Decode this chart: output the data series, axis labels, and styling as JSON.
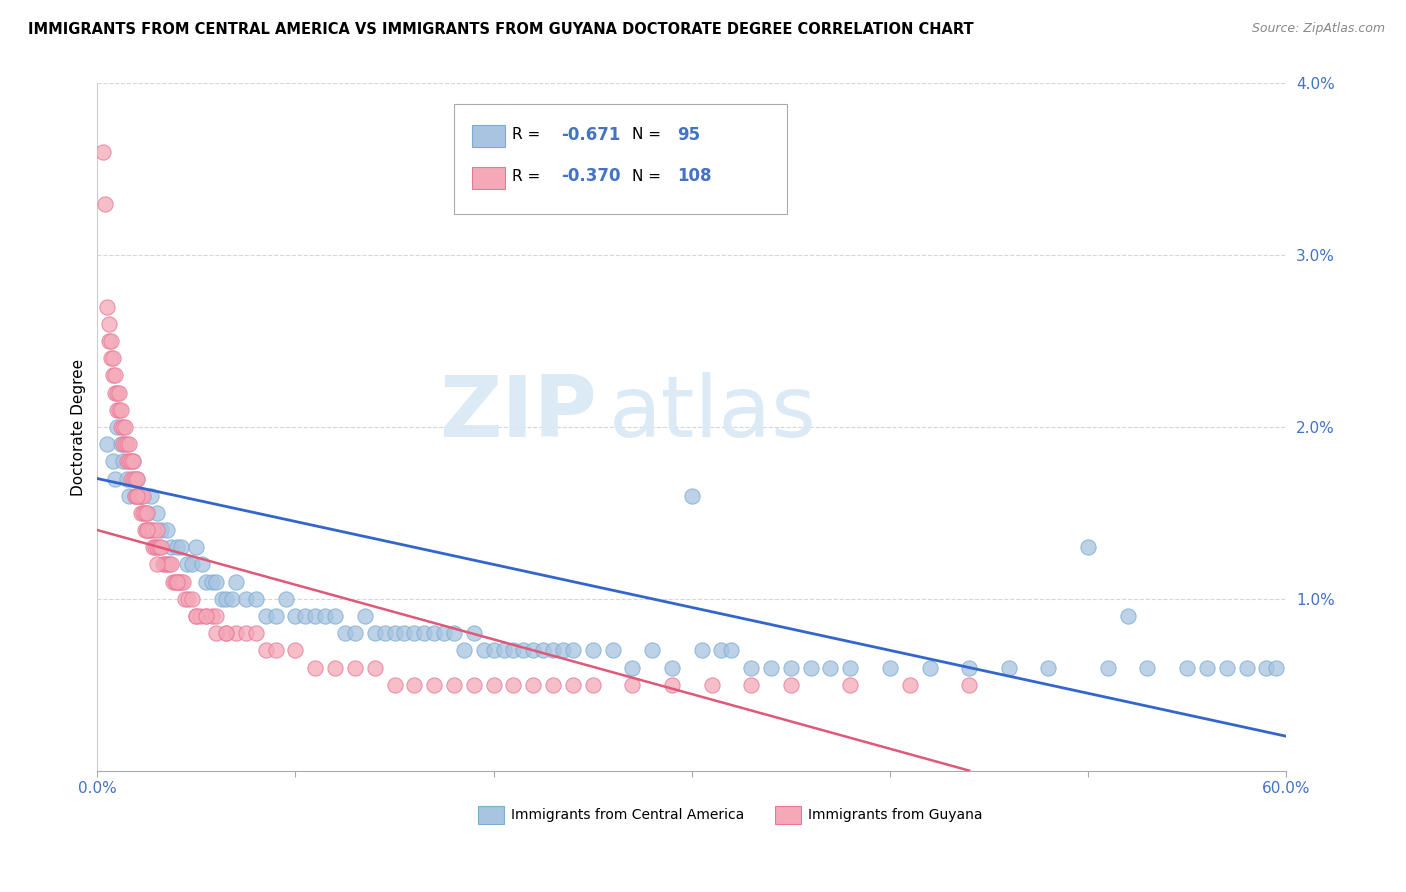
{
  "title": "IMMIGRANTS FROM CENTRAL AMERICA VS IMMIGRANTS FROM GUYANA DOCTORATE DEGREE CORRELATION CHART",
  "source": "Source: ZipAtlas.com",
  "ylabel": "Doctorate Degree",
  "xmin": 0.0,
  "xmax": 0.6,
  "ymin": 0.0,
  "ymax": 0.04,
  "R_blue": -0.671,
  "N_blue": 95,
  "R_pink": -0.37,
  "N_pink": 108,
  "legend_label_blue": "Immigrants from Central America",
  "legend_label_pink": "Immigrants from Guyana",
  "watermark_zip": "ZIP",
  "watermark_atlas": "atlas",
  "blue_color": "#a8c4e0",
  "blue_edge": "#7aadd4",
  "pink_color": "#f4a8b8",
  "pink_edge": "#e87898",
  "line_blue": "#3366cc",
  "line_pink": "#e05878",
  "blue_line_start_y": 0.017,
  "blue_line_end_y": 0.002,
  "pink_line_start_y": 0.014,
  "pink_line_end_x": 0.44,
  "blue_scatter_x": [
    0.005,
    0.008,
    0.009,
    0.01,
    0.012,
    0.013,
    0.015,
    0.016,
    0.018,
    0.019,
    0.02,
    0.022,
    0.025,
    0.027,
    0.03,
    0.032,
    0.035,
    0.037,
    0.04,
    0.042,
    0.045,
    0.048,
    0.05,
    0.053,
    0.055,
    0.058,
    0.06,
    0.063,
    0.065,
    0.068,
    0.07,
    0.075,
    0.08,
    0.085,
    0.09,
    0.095,
    0.1,
    0.105,
    0.11,
    0.115,
    0.12,
    0.125,
    0.13,
    0.135,
    0.14,
    0.145,
    0.15,
    0.155,
    0.16,
    0.165,
    0.17,
    0.175,
    0.18,
    0.185,
    0.19,
    0.195,
    0.2,
    0.205,
    0.21,
    0.215,
    0.22,
    0.225,
    0.23,
    0.235,
    0.24,
    0.25,
    0.26,
    0.27,
    0.28,
    0.29,
    0.3,
    0.305,
    0.315,
    0.32,
    0.33,
    0.34,
    0.35,
    0.36,
    0.37,
    0.38,
    0.4,
    0.42,
    0.44,
    0.46,
    0.48,
    0.5,
    0.51,
    0.52,
    0.53,
    0.55,
    0.56,
    0.57,
    0.58,
    0.59,
    0.595
  ],
  "blue_scatter_y": [
    0.019,
    0.018,
    0.017,
    0.02,
    0.019,
    0.018,
    0.017,
    0.016,
    0.018,
    0.016,
    0.017,
    0.016,
    0.015,
    0.016,
    0.015,
    0.014,
    0.014,
    0.013,
    0.013,
    0.013,
    0.012,
    0.012,
    0.013,
    0.012,
    0.011,
    0.011,
    0.011,
    0.01,
    0.01,
    0.01,
    0.011,
    0.01,
    0.01,
    0.009,
    0.009,
    0.01,
    0.009,
    0.009,
    0.009,
    0.009,
    0.009,
    0.008,
    0.008,
    0.009,
    0.008,
    0.008,
    0.008,
    0.008,
    0.008,
    0.008,
    0.008,
    0.008,
    0.008,
    0.007,
    0.008,
    0.007,
    0.007,
    0.007,
    0.007,
    0.007,
    0.007,
    0.007,
    0.007,
    0.007,
    0.007,
    0.007,
    0.007,
    0.006,
    0.007,
    0.006,
    0.016,
    0.007,
    0.007,
    0.007,
    0.006,
    0.006,
    0.006,
    0.006,
    0.006,
    0.006,
    0.006,
    0.006,
    0.006,
    0.006,
    0.006,
    0.013,
    0.006,
    0.009,
    0.006,
    0.006,
    0.006,
    0.006,
    0.006,
    0.006,
    0.006
  ],
  "pink_scatter_x": [
    0.003,
    0.004,
    0.005,
    0.006,
    0.006,
    0.007,
    0.007,
    0.008,
    0.008,
    0.009,
    0.009,
    0.01,
    0.01,
    0.011,
    0.011,
    0.012,
    0.012,
    0.013,
    0.013,
    0.014,
    0.014,
    0.015,
    0.015,
    0.016,
    0.016,
    0.017,
    0.017,
    0.018,
    0.018,
    0.019,
    0.019,
    0.02,
    0.02,
    0.021,
    0.022,
    0.022,
    0.023,
    0.023,
    0.024,
    0.024,
    0.025,
    0.025,
    0.026,
    0.027,
    0.028,
    0.028,
    0.029,
    0.03,
    0.03,
    0.031,
    0.032,
    0.033,
    0.034,
    0.035,
    0.036,
    0.037,
    0.038,
    0.039,
    0.04,
    0.041,
    0.042,
    0.043,
    0.044,
    0.046,
    0.048,
    0.05,
    0.052,
    0.055,
    0.058,
    0.06,
    0.065,
    0.07,
    0.075,
    0.08,
    0.085,
    0.09,
    0.1,
    0.11,
    0.12,
    0.13,
    0.14,
    0.15,
    0.16,
    0.17,
    0.18,
    0.19,
    0.2,
    0.21,
    0.22,
    0.23,
    0.24,
    0.25,
    0.27,
    0.29,
    0.31,
    0.33,
    0.35,
    0.38,
    0.41,
    0.44,
    0.02,
    0.025,
    0.03,
    0.04,
    0.05,
    0.055,
    0.06,
    0.065
  ],
  "pink_scatter_y": [
    0.036,
    0.033,
    0.027,
    0.025,
    0.026,
    0.024,
    0.025,
    0.023,
    0.024,
    0.022,
    0.023,
    0.021,
    0.022,
    0.021,
    0.022,
    0.02,
    0.021,
    0.02,
    0.019,
    0.019,
    0.02,
    0.018,
    0.019,
    0.018,
    0.019,
    0.018,
    0.017,
    0.017,
    0.018,
    0.017,
    0.016,
    0.016,
    0.017,
    0.016,
    0.015,
    0.016,
    0.015,
    0.016,
    0.015,
    0.014,
    0.014,
    0.015,
    0.014,
    0.014,
    0.013,
    0.014,
    0.013,
    0.013,
    0.014,
    0.013,
    0.013,
    0.012,
    0.012,
    0.012,
    0.012,
    0.012,
    0.011,
    0.011,
    0.011,
    0.011,
    0.011,
    0.011,
    0.01,
    0.01,
    0.01,
    0.009,
    0.009,
    0.009,
    0.009,
    0.009,
    0.008,
    0.008,
    0.008,
    0.008,
    0.007,
    0.007,
    0.007,
    0.006,
    0.006,
    0.006,
    0.006,
    0.005,
    0.005,
    0.005,
    0.005,
    0.005,
    0.005,
    0.005,
    0.005,
    0.005,
    0.005,
    0.005,
    0.005,
    0.005,
    0.005,
    0.005,
    0.005,
    0.005,
    0.005,
    0.005,
    0.016,
    0.014,
    0.012,
    0.011,
    0.009,
    0.009,
    0.008,
    0.008
  ]
}
